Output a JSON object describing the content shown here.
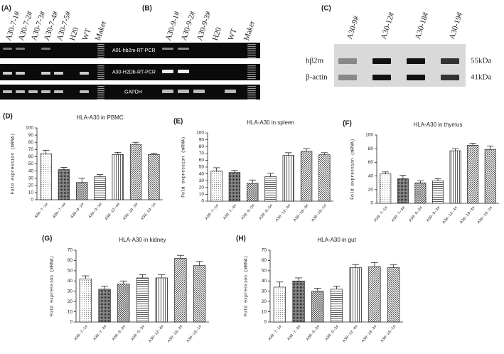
{
  "gels": [
    {
      "label": "(A)",
      "lanes": [
        "A30-7-1#",
        "A30-7-2#",
        "A30-7-3#",
        "A30-7-4#",
        "A30-7-5#",
        "H20",
        "WT",
        "Maker"
      ],
      "rows": [
        "A01-hb2m-RT-PCR",
        "A30-H2Db-RT-PCR",
        "GAPDH"
      ]
    },
    {
      "label": "(B)",
      "lanes": [
        "A30-9-1#",
        "A30-9-2#",
        "A30-9-3#",
        "H20",
        "WT",
        "Maker"
      ]
    },
    {
      "label": "(C)",
      "lanes": [
        "A30-9#",
        "A30-12#",
        "A30-18#",
        "A30-19#"
      ],
      "rows": [
        "hβ2m",
        "β-actin"
      ],
      "sizes": [
        "55kDa",
        "41kDa"
      ]
    }
  ],
  "chart_data": [
    {
      "type": "bar",
      "label": "(D)",
      "title": "HLA-A30 in PBMC",
      "y_label": "Fold expression (mRNA)",
      "categories": [
        "A30-7-1#",
        "A30-7-4#",
        "A30-9-2#",
        "A30-9-3#",
        "A30-12-4#",
        "A30-18-3#",
        "A30-19-1#"
      ],
      "values": [
        64,
        42,
        24,
        32,
        63,
        77,
        63
      ],
      "errors": [
        5,
        3,
        6,
        3,
        3,
        3,
        2
      ],
      "ylim": [
        0,
        100
      ],
      "yticks": [
        0,
        10,
        20,
        30,
        40,
        50,
        60,
        70,
        80,
        90,
        100
      ]
    },
    {
      "type": "bar",
      "label": "(E)",
      "title": "HLA-A30 in spleen",
      "y_label": "Fold expression (mRNA)",
      "categories": [
        "A30-7-1#",
        "A30-7-4#",
        "A30-9-2#",
        "A30-9-3#",
        "A30-12-4#",
        "A30-18-3#",
        "A30-19-1#"
      ],
      "values": [
        44,
        42,
        26,
        36,
        67,
        73,
        68
      ],
      "errors": [
        5,
        3,
        5,
        5,
        4,
        4,
        3
      ],
      "ylim": [
        0,
        100
      ],
      "yticks": [
        0,
        10,
        20,
        30,
        40,
        50,
        60,
        70,
        80,
        90,
        100
      ]
    },
    {
      "type": "bar",
      "label": "(F)",
      "title": "HLA-A30 in thymus",
      "y_label": "Fold expression (mRNA)",
      "categories": [
        "A30-7-1#",
        "A30-7-4#",
        "A30-9-2#",
        "A30-9-3#",
        "A30-12-4#",
        "A30-18-3#",
        "A30-19-1#"
      ],
      "values": [
        43,
        36,
        30,
        33,
        77,
        85,
        79
      ],
      "errors": [
        3,
        5,
        3,
        3,
        3,
        3,
        5
      ],
      "ylim": [
        0,
        100
      ],
      "yticks": [
        0,
        20,
        40,
        60,
        80,
        100
      ]
    },
    {
      "type": "bar",
      "label": "(G)",
      "title": "HLA-A30 in kidney",
      "y_label": "Fold expression (mRNA)",
      "categories": [
        "A30-7-1#",
        "A30-7-4#",
        "A30-9-2#",
        "A30-9-3#",
        "A30-12-4#",
        "A30-18-3#",
        "A30-19-1#"
      ],
      "values": [
        42,
        32,
        37,
        43,
        43,
        62,
        55
      ],
      "errors": [
        3,
        3,
        3,
        3,
        3,
        3,
        4
      ],
      "ylim": [
        0,
        70
      ],
      "yticks": [
        0,
        10,
        20,
        30,
        40,
        50,
        60,
        70
      ]
    },
    {
      "type": "bar",
      "label": "(H)",
      "title": "HLA-A30 in gut",
      "y_label": "Fold expression (mRNA)",
      "categories": [
        "A30-7-1#",
        "A30-7-4#",
        "A30-9-2#",
        "A30-9-3#",
        "A30-12-4#",
        "A30-18-3#",
        "A30-19-1#"
      ],
      "values": [
        34,
        40,
        30,
        32,
        53,
        54,
        53
      ],
      "errors": [
        5,
        3,
        3,
        3,
        3,
        4,
        3
      ],
      "ylim": [
        0,
        70
      ],
      "yticks": [
        0,
        10,
        20,
        30,
        40,
        50,
        60,
        70
      ]
    }
  ]
}
